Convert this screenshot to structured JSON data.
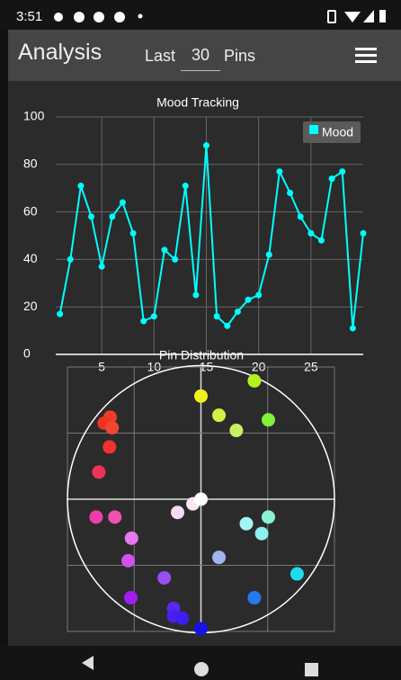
{
  "status_bar": {
    "time": "3:51"
  },
  "header": {
    "title": "Analysis",
    "prefix": "Last",
    "count": "30",
    "suffix": "Pins"
  },
  "chart_data": [
    {
      "type": "line",
      "title": "Mood Tracking",
      "x": [
        1,
        2,
        3,
        4,
        5,
        6,
        7,
        8,
        9,
        10,
        11,
        12,
        13,
        14,
        15,
        16,
        17,
        18,
        19,
        20,
        21,
        22,
        23,
        24,
        25,
        26,
        27,
        28,
        29,
        30
      ],
      "series": [
        {
          "name": "Mood",
          "color": "#00ffff",
          "values": [
            17,
            40,
            71,
            58,
            37,
            58,
            64,
            51,
            14,
            16,
            44,
            40,
            71,
            25,
            88,
            16,
            12,
            18,
            23,
            25,
            42,
            77,
            68,
            58,
            51,
            48,
            74,
            77,
            11,
            51
          ]
        }
      ],
      "xlim": [
        0.6,
        30
      ],
      "ylim": [
        0,
        100
      ],
      "xticks": [
        5,
        10,
        15,
        20,
        25
      ],
      "yticks": [
        0,
        20,
        40,
        60,
        80,
        100
      ],
      "grid": true,
      "legend": "top-right"
    },
    {
      "type": "scatter",
      "title": "Pin Distribution",
      "x": [
        0,
        0.8,
        0.27,
        0.53,
        1.01,
        -1.36,
        -1.45,
        -1.33,
        -1.37,
        -1.53,
        -1.57,
        -1.29,
        -1.04,
        -1.09,
        -1.05,
        -0.55,
        -0.41,
        -0.41,
        -0.28,
        0,
        -0.12,
        0,
        -0.35,
        0.68,
        1.01,
        0.91,
        1.44,
        0.27,
        0.8
      ],
      "y": [
        1.56,
        1.79,
        1.27,
        1.04,
        1.2,
        1.24,
        1.15,
        1.08,
        0.79,
        0.41,
        -0.27,
        -0.27,
        -0.59,
        -0.93,
        -1.49,
        -1.19,
        -1.65,
        -1.77,
        -1.8,
        -1.96,
        -0.07,
        0,
        -0.2,
        -0.37,
        -0.27,
        -0.52,
        -1.13,
        -0.88,
        -1.49
      ],
      "colors": [
        "#f0f01e",
        "#b4f01e",
        "#d2f046",
        "#c8f064",
        "#82f03c",
        "#f03c28",
        "#f0321e",
        "#f04632",
        "#f03232",
        "#f0325a",
        "#f03caa",
        "#f050b4",
        "#e678f0",
        "#d250f0",
        "#a01ef0",
        "#9650f0",
        "#5a28f0",
        "#4b1ef0",
        "#3c1ef0",
        "#1414e6",
        "#ffe6f0",
        "#ffffff",
        "#f5dcf5",
        "#a0f5f5",
        "#8cf0d2",
        "#8cf0f0",
        "#1edcf0",
        "#a0b4f0",
        "#2878f0"
      ],
      "xlim": [
        -2,
        2
      ],
      "ylim": [
        -2,
        2
      ],
      "xticks": [
        -2,
        -1,
        0,
        1,
        2
      ],
      "yticks": [
        -2,
        -1,
        0,
        1,
        2
      ],
      "grid": true
    }
  ]
}
